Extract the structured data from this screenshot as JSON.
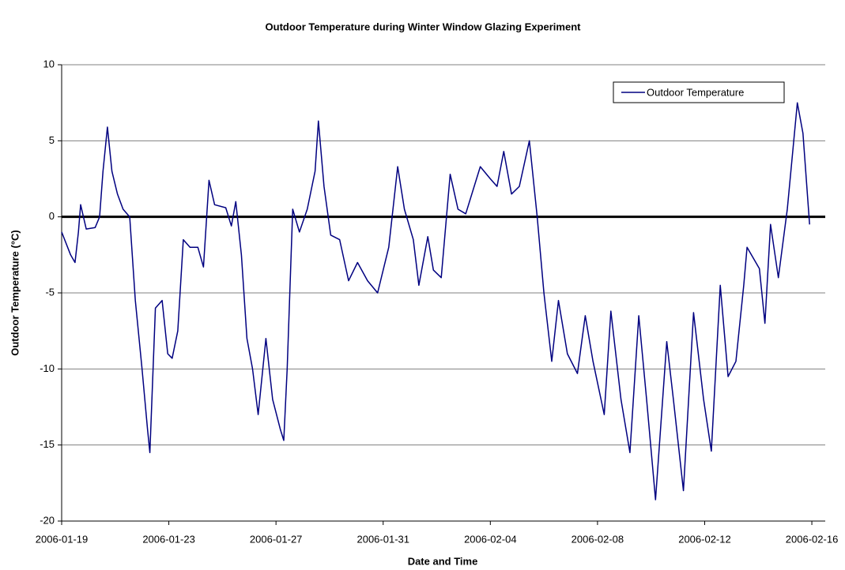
{
  "chart_data": {
    "type": "line",
    "title": "Outdoor Temperature during Winter Window Glazing Experiment",
    "x_label": "Date and Time",
    "y_label": "Outdoor Temperature (°C)",
    "x": [
      "2006-01-19 00:00",
      "2006-01-19 08:00",
      "2006-01-19 12:00",
      "2006-01-19 15:00",
      "2006-01-19 17:00",
      "2006-01-19 22:00",
      "2006-01-20 06:00",
      "2006-01-20 10:00",
      "2006-01-20 13:00",
      "2006-01-20 17:00",
      "2006-01-20 21:00",
      "2006-01-21 02:00",
      "2006-01-21 07:00",
      "2006-01-21 13:00",
      "2006-01-21 18:00",
      "2006-01-22 00:00",
      "2006-01-22 05:00",
      "2006-01-22 07:00",
      "2006-01-22 12:00",
      "2006-01-22 18:00",
      "2006-01-22 23:00",
      "2006-01-23 03:00",
      "2006-01-23 08:00",
      "2006-01-23 13:00",
      "2006-01-23 19:00",
      "2006-01-24 02:00",
      "2006-01-24 07:00",
      "2006-01-24 12:00",
      "2006-01-24 17:00",
      "2006-01-25 03:00",
      "2006-01-25 08:00",
      "2006-01-25 12:00",
      "2006-01-25 17:00",
      "2006-01-25 22:00",
      "2006-01-26 03:00",
      "2006-01-26 08:00",
      "2006-01-26 15:00",
      "2006-01-26 21:00",
      "2006-01-27 04:00",
      "2006-01-27 07:00",
      "2006-01-27 10:00",
      "2006-01-27 15:00",
      "2006-01-27 21:00",
      "2006-01-28 04:00",
      "2006-01-28 11:00",
      "2006-01-28 14:00",
      "2006-01-28 19:00",
      "2006-01-29 01:00",
      "2006-01-29 09:00",
      "2006-01-29 17:00",
      "2006-01-30 01:00",
      "2006-01-30 10:00",
      "2006-01-30 19:00",
      "2006-01-31 05:00",
      "2006-01-31 13:00",
      "2006-01-31 19:00",
      "2006-02-01 03:00",
      "2006-02-01 08:00",
      "2006-02-01 16:00",
      "2006-02-01 21:00",
      "2006-02-02 04:00",
      "2006-02-02 12:00",
      "2006-02-02 19:00",
      "2006-02-03 02:00",
      "2006-02-03 15:00",
      "2006-02-04 00:00",
      "2006-02-04 06:00",
      "2006-02-04 12:00",
      "2006-02-04 19:00",
      "2006-02-05 02:00",
      "2006-02-05 11:00",
      "2006-02-05 18:00",
      "2006-02-06 00:00",
      "2006-02-06 07:00",
      "2006-02-06 13:00",
      "2006-02-06 21:00",
      "2006-02-07 06:00",
      "2006-02-07 13:00",
      "2006-02-07 20:00",
      "2006-02-08 06:00",
      "2006-02-08 12:00",
      "2006-02-08 21:00",
      "2006-02-09 05:00",
      "2006-02-09 13:00",
      "2006-02-09 20:00",
      "2006-02-10 04:00",
      "2006-02-10 14:00",
      "2006-02-10 20:00",
      "2006-02-11 05:00",
      "2006-02-11 14:00",
      "2006-02-11 23:00",
      "2006-02-12 06:00",
      "2006-02-12 14:00",
      "2006-02-12 21:00",
      "2006-02-13 04:00",
      "2006-02-13 11:00",
      "2006-02-13 14:00",
      "2006-02-14 01:00",
      "2006-02-14 06:00",
      "2006-02-14 11:00",
      "2006-02-14 18:00",
      "2006-02-15 02:00",
      "2006-02-15 11:00",
      "2006-02-15 16:00",
      "2006-02-15 22:00"
    ],
    "series": [
      {
        "name": "Outdoor Temperature",
        "color": "#000080",
        "values": [
          -1,
          -2.5,
          -3,
          -1,
          0.8,
          -0.8,
          -0.7,
          0,
          3,
          5.9,
          3,
          1.5,
          0.5,
          0,
          -5.5,
          -10,
          -14,
          -15.5,
          -6,
          -5.5,
          -9,
          -9.3,
          -7.5,
          -1.5,
          -2,
          -2,
          -3.3,
          2.4,
          0.8,
          0.6,
          -0.6,
          1,
          -2.5,
          -8,
          -10,
          -13,
          -8,
          -12,
          -14,
          -14.7,
          -10,
          0.5,
          -1,
          0.5,
          3,
          6.3,
          2,
          -1.2,
          -1.5,
          -4.2,
          -3,
          -4.2,
          -5,
          -2,
          3.3,
          0.5,
          -1.5,
          -4.5,
          -1.3,
          -3.5,
          -4,
          2.8,
          0.5,
          0.2,
          3.3,
          2.5,
          2,
          4.3,
          1.5,
          2,
          5,
          0,
          -5,
          -9.5,
          -5.5,
          -9,
          -10.3,
          -6.5,
          -9.5,
          -13,
          -6.2,
          -12,
          -15.5,
          -6.5,
          -12,
          -18.6,
          -8.2,
          -12,
          -18,
          -6.3,
          -12,
          -15.4,
          -4.5,
          -10.5,
          -9.5,
          -4.5,
          -2,
          -3.4,
          -7,
          -0.5,
          -4,
          0.5,
          7.5,
          5.5,
          -0.5
        ]
      }
    ],
    "xlim": [
      "2006-01-19 00:00",
      "2006-02-16 12:00"
    ],
    "xticks": [
      "2006-01-19",
      "2006-01-23",
      "2006-01-27",
      "2006-01-31",
      "2006-02-04",
      "2006-02-08",
      "2006-02-12",
      "2006-02-16"
    ],
    "ylim": [
      -20,
      10
    ],
    "yticks": [
      -20,
      -15,
      -10,
      -5,
      0,
      5,
      10
    ],
    "grid": true,
    "zero_line": true,
    "legend": "top-right"
  }
}
